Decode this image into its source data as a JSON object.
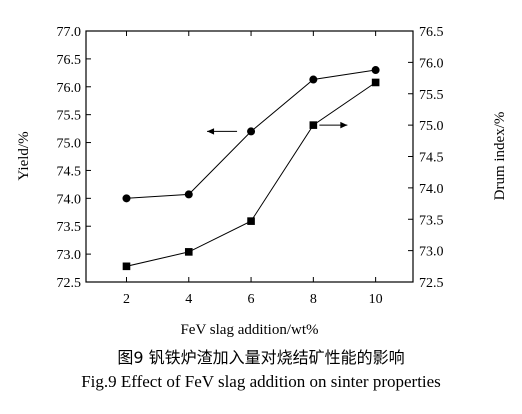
{
  "chart_data": {
    "type": "line",
    "xlabel": "FeV slag addition/wt%",
    "ylabel": "Yield/%",
    "y2label": "Drum index/%",
    "x": [
      2,
      4,
      6,
      8,
      10
    ],
    "x_ticks": [
      "2",
      "4",
      "6",
      "8",
      "10"
    ],
    "xlim": [
      0.7,
      11.2
    ],
    "ylim": [
      72.5,
      77.0
    ],
    "y_ticks": [
      "72.5",
      "73.0",
      "73.5",
      "74.0",
      "74.5",
      "75.0",
      "75.5",
      "76.0",
      "76.5",
      "77.0"
    ],
    "y2lim": [
      72.5,
      76.5
    ],
    "y2_ticks": [
      "72.5",
      "73.0",
      "73.5",
      "74.0",
      "74.5",
      "75.0",
      "75.5",
      "76.0",
      "76.5"
    ],
    "grid": false,
    "series": [
      {
        "axis": "left",
        "marker": "circle",
        "values": [
          74.0,
          74.07,
          75.2,
          76.13,
          76.3
        ]
      },
      {
        "axis": "right",
        "marker": "square",
        "values": [
          72.75,
          72.98,
          73.47,
          75.0,
          75.68
        ]
      }
    ],
    "annotations": [
      {
        "type": "arrow",
        "direction": "left",
        "points_to_axis": "left",
        "near_x": 6,
        "near_y": 75.2
      },
      {
        "type": "arrow",
        "direction": "right",
        "points_to_axis": "right",
        "near_x": 8,
        "near_y2": 75.0
      }
    ]
  },
  "caption": {
    "chinese": "图9   钒铁炉渣加入量对烧结矿性能的影响",
    "english": "Fig.9    Effect of FeV slag addition on sinter properties"
  },
  "colors": {
    "line": "#000000",
    "background": "#ffffff"
  }
}
